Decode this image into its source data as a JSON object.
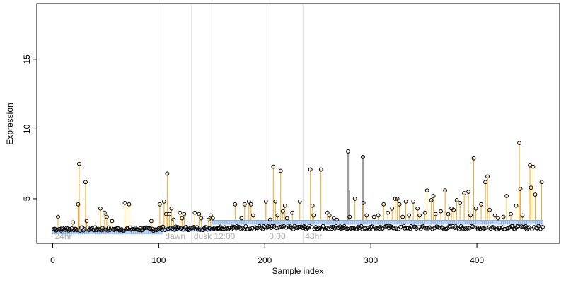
{
  "chart_data": {
    "type": "scatter",
    "xlabel": "Sample index",
    "ylabel": "Expression",
    "xlim": [
      -15,
      478
    ],
    "ylim": [
      1.8,
      19.0
    ],
    "x_ticks": [
      0,
      100,
      200,
      300,
      400
    ],
    "y_ticks": [
      5,
      10,
      15
    ],
    "grid": false,
    "legend": "none",
    "colors": {
      "points": "#000000",
      "high_drop": "#f5a623",
      "baseline_segment": "#87aee0",
      "control_bar": "#a0a0a0",
      "condition_divider": "#dddddd",
      "condition_label": "#a9a9a9"
    },
    "condition_labels": [
      {
        "text": "24hr",
        "x": 2
      },
      {
        "text": "dawn",
        "x": 106
      },
      {
        "text": "dusk",
        "x": 133
      },
      {
        "text": "12:00",
        "x": 152
      },
      {
        "text": "0:00",
        "x": 204
      },
      {
        "text": "48hr",
        "x": 238
      }
    ],
    "condition_dividers": [
      104,
      131,
      150,
      202,
      236
    ],
    "baseline_segments": [
      {
        "x0": 0,
        "x1": 104,
        "y": 2.75
      },
      {
        "x0": 104,
        "x1": 150,
        "y": 2.95
      },
      {
        "x0": 150,
        "x1": 462,
        "y": 3.45
      }
    ],
    "control_bars": [
      {
        "x": 278.5,
        "y": 8.3
      },
      {
        "x": 279.5,
        "y": 5.6
      },
      {
        "x": 292.0,
        "y": 7.9
      },
      {
        "x": 293.0,
        "y": 8.1
      }
    ],
    "highlighted_points": [
      {
        "x": 5,
        "y": 3.7
      },
      {
        "x": 19,
        "y": 3.3
      },
      {
        "x": 24,
        "y": 4.6
      },
      {
        "x": 25,
        "y": 7.5
      },
      {
        "x": 31,
        "y": 6.2
      },
      {
        "x": 32,
        "y": 3.4
      },
      {
        "x": 45,
        "y": 4.3
      },
      {
        "x": 49,
        "y": 4.0
      },
      {
        "x": 51,
        "y": 3.7
      },
      {
        "x": 56,
        "y": 3.4
      },
      {
        "x": 68,
        "y": 4.7
      },
      {
        "x": 72,
        "y": 4.6
      },
      {
        "x": 93,
        "y": 3.4
      },
      {
        "x": 101,
        "y": 4.6
      },
      {
        "x": 105,
        "y": 4.8
      },
      {
        "x": 107,
        "y": 3.9
      },
      {
        "x": 108,
        "y": 6.8
      },
      {
        "x": 110,
        "y": 3.9
      },
      {
        "x": 112,
        "y": 4.3
      },
      {
        "x": 114,
        "y": 3.5
      },
      {
        "x": 120,
        "y": 4.0
      },
      {
        "x": 122,
        "y": 3.6
      },
      {
        "x": 124,
        "y": 3.9
      },
      {
        "x": 134,
        "y": 4.0
      },
      {
        "x": 138,
        "y": 3.9
      },
      {
        "x": 140,
        "y": 3.6
      },
      {
        "x": 147,
        "y": 3.5
      },
      {
        "x": 149,
        "y": 3.8
      },
      {
        "x": 151,
        "y": 3.6
      },
      {
        "x": 172,
        "y": 4.6
      },
      {
        "x": 178,
        "y": 3.6
      },
      {
        "x": 181,
        "y": 4.6
      },
      {
        "x": 185,
        "y": 4.8
      },
      {
        "x": 187,
        "y": 4.6
      },
      {
        "x": 189,
        "y": 3.8
      },
      {
        "x": 201,
        "y": 4.8
      },
      {
        "x": 205,
        "y": 3.5
      },
      {
        "x": 208,
        "y": 7.3
      },
      {
        "x": 210,
        "y": 4.8
      },
      {
        "x": 212,
        "y": 3.8
      },
      {
        "x": 215,
        "y": 7.0
      },
      {
        "x": 217,
        "y": 4.1
      },
      {
        "x": 219,
        "y": 4.5
      },
      {
        "x": 221,
        "y": 3.6
      },
      {
        "x": 226,
        "y": 4.0
      },
      {
        "x": 233,
        "y": 4.8
      },
      {
        "x": 243,
        "y": 7.1
      },
      {
        "x": 245,
        "y": 4.5
      },
      {
        "x": 246,
        "y": 3.8
      },
      {
        "x": 253,
        "y": 7.1
      },
      {
        "x": 259,
        "y": 4.0
      },
      {
        "x": 261,
        "y": 3.8
      },
      {
        "x": 265,
        "y": 3.6
      },
      {
        "x": 268,
        "y": 3.5
      },
      {
        "x": 280,
        "y": 3.7
      },
      {
        "x": 285,
        "y": 5.0
      },
      {
        "x": 293,
        "y": 4.7
      },
      {
        "x": 296,
        "y": 3.8
      },
      {
        "x": 303,
        "y": 3.7
      },
      {
        "x": 307,
        "y": 3.8
      },
      {
        "x": 312,
        "y": 4.6
      },
      {
        "x": 316,
        "y": 4.0
      },
      {
        "x": 320,
        "y": 4.3
      },
      {
        "x": 323,
        "y": 5.0
      },
      {
        "x": 325,
        "y": 5.0
      },
      {
        "x": 327,
        "y": 4.6
      },
      {
        "x": 330,
        "y": 3.7
      },
      {
        "x": 333,
        "y": 4.8
      },
      {
        "x": 336,
        "y": 3.8
      },
      {
        "x": 340,
        "y": 4.8
      },
      {
        "x": 344,
        "y": 4.3
      },
      {
        "x": 346,
        "y": 3.8
      },
      {
        "x": 351,
        "y": 4.0
      },
      {
        "x": 353,
        "y": 5.6
      },
      {
        "x": 357,
        "y": 4.9
      },
      {
        "x": 359,
        "y": 5.2
      },
      {
        "x": 361,
        "y": 3.9
      },
      {
        "x": 366,
        "y": 4.1
      },
      {
        "x": 370,
        "y": 5.6
      },
      {
        "x": 373,
        "y": 3.9
      },
      {
        "x": 376,
        "y": 4.3
      },
      {
        "x": 378,
        "y": 4.2
      },
      {
        "x": 381,
        "y": 4.9
      },
      {
        "x": 384,
        "y": 4.7
      },
      {
        "x": 388,
        "y": 5.4
      },
      {
        "x": 392,
        "y": 5.5
      },
      {
        "x": 394,
        "y": 3.8
      },
      {
        "x": 397,
        "y": 7.9
      },
      {
        "x": 399,
        "y": 4.3
      },
      {
        "x": 404,
        "y": 4.6
      },
      {
        "x": 408,
        "y": 6.2
      },
      {
        "x": 410,
        "y": 6.6
      },
      {
        "x": 412,
        "y": 4.2
      },
      {
        "x": 417,
        "y": 3.8
      },
      {
        "x": 420,
        "y": 3.6
      },
      {
        "x": 425,
        "y": 3.7
      },
      {
        "x": 428,
        "y": 5.2
      },
      {
        "x": 432,
        "y": 3.9
      },
      {
        "x": 437,
        "y": 4.5
      },
      {
        "x": 440,
        "y": 9.0
      },
      {
        "x": 441,
        "y": 5.7
      },
      {
        "x": 443,
        "y": 3.8
      },
      {
        "x": 450,
        "y": 7.4
      },
      {
        "x": 451,
        "y": 5.8
      },
      {
        "x": 453,
        "y": 7.3
      },
      {
        "x": 455,
        "y": 5.3
      },
      {
        "x": 461,
        "y": 6.2
      }
    ],
    "peaks": [
      {
        "x": 278.5,
        "y": 8.4
      },
      {
        "x": 292.5,
        "y": 8.0
      }
    ],
    "n_samples": 462
  }
}
